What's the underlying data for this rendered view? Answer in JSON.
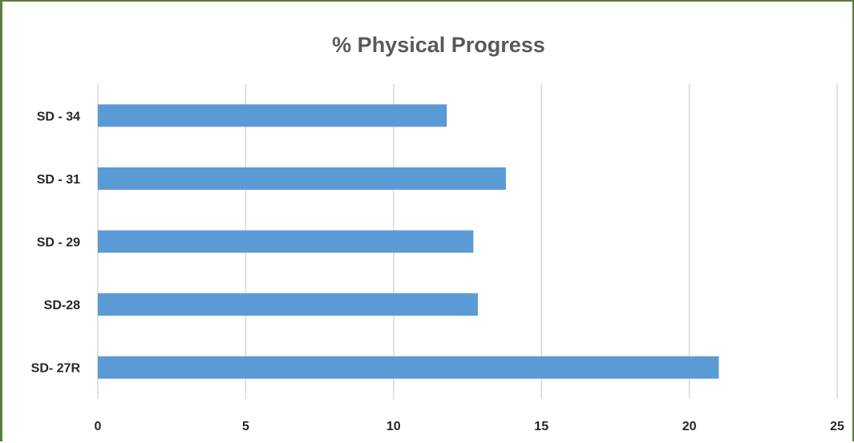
{
  "chart_data": {
    "type": "bar",
    "orientation": "horizontal",
    "title": "% Physical Progress",
    "categories": [
      "SD - 34",
      "SD - 31",
      "SD - 29",
      "SD-28",
      "SD- 27R"
    ],
    "values": [
      11.8,
      13.8,
      12.7,
      12.85,
      21.0
    ],
    "xlim": [
      0,
      25
    ],
    "xticks": [
      "0",
      "5",
      "10",
      "15",
      "20",
      "25"
    ],
    "grid": true,
    "legend": "none",
    "colors": {
      "bar": "#5b9bd5",
      "grid": "#d9d9d9",
      "border": "#5a7f3a"
    }
  }
}
